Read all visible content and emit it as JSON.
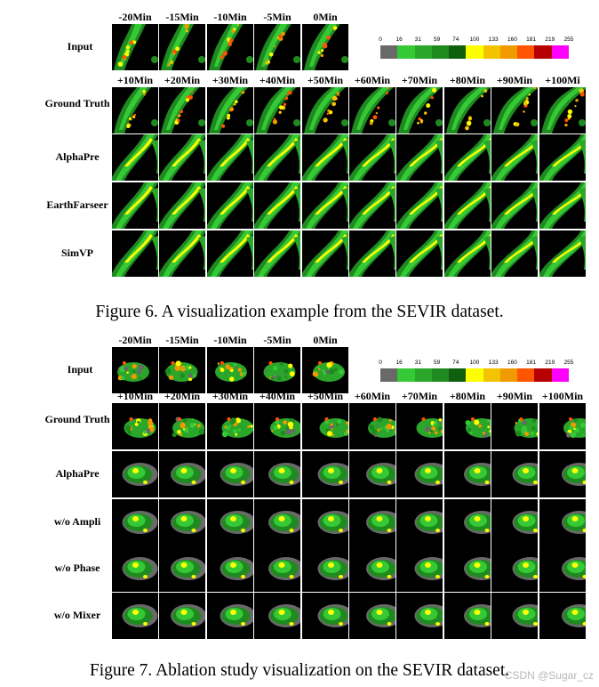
{
  "figure6": {
    "caption": "Figure 6. A visualization example from the SEVIR dataset.",
    "input_label": "Input",
    "input_times": [
      "-20Min",
      "-15Min",
      "-10Min",
      "-5Min",
      "0Min"
    ],
    "output_times": [
      "+10Min",
      "+20Min",
      "+30Min",
      "+40Min",
      "+50Min",
      "+60Min",
      "+70Min",
      "+80Min",
      "+90Min",
      "+100Mi"
    ],
    "rows": [
      "Ground Truth",
      "AlphaPre",
      "EarthFarseer",
      "SimVP"
    ]
  },
  "figure7": {
    "caption": "Figure 7. Ablation study visualization on the SEVIR dataset.",
    "input_label": "Input",
    "input_times": [
      "-20Min",
      "-15Min",
      "-10Min",
      "-5Min",
      "0Min"
    ],
    "output_times": [
      "+10Min",
      "+20Min",
      "+30Min",
      "+40Min",
      "+50Min",
      "+60Min",
      "+70Min",
      "+80Min",
      "+90Min",
      "+100Min"
    ],
    "rows": [
      "Ground Truth",
      "AlphaPre",
      "w/o Ampli",
      "w/o Phase",
      "w/o Mixer"
    ]
  },
  "colorbar": {
    "ticks": [
      "0",
      "16",
      "31",
      "59",
      "74",
      "100",
      "133",
      "160",
      "181",
      "219",
      "255"
    ],
    "colors": [
      "#696969",
      "#36c936",
      "#2aa62a",
      "#1f8a1f",
      "#0f5f0f",
      "#ffff00",
      "#f2c400",
      "#f09a00",
      "#ff5500",
      "#b40000",
      "#ff00ff"
    ]
  },
  "watermark": "CSDN @Sugar_cz"
}
